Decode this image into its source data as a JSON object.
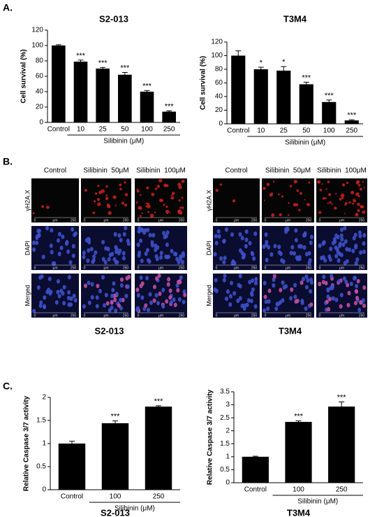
{
  "panel_labels": [
    "A.",
    "B.",
    "C."
  ],
  "chart_data": [
    {
      "type": "bar",
      "title": "S2-013",
      "ylabel": "Cell survival (%)",
      "xlabel": "Silibinin (μM)",
      "categories": [
        "Control",
        "10",
        "25",
        "50",
        "100",
        "250"
      ],
      "values": [
        100,
        79,
        70,
        62,
        40,
        14
      ],
      "errors": [
        1,
        2,
        1.5,
        3,
        1.5,
        1
      ],
      "annotations": [
        null,
        "***",
        "***",
        "***",
        "***",
        "***"
      ],
      "color": "#000000",
      "ylim": [
        0,
        120
      ],
      "yticks": [
        0,
        20,
        40,
        60,
        80,
        100,
        120
      ]
    },
    {
      "type": "bar",
      "title": "T3M4",
      "ylabel": "Cell survival (%)",
      "xlabel": "Silibinin (μM)",
      "categories": [
        "Control",
        "10",
        "25",
        "50",
        "100",
        "250"
      ],
      "values": [
        100,
        80,
        78,
        58,
        32,
        5
      ],
      "errors": [
        7,
        3,
        6,
        3,
        3,
        1
      ],
      "annotations": [
        null,
        "*",
        "*",
        "***",
        "***",
        "***"
      ],
      "color": "#000000",
      "ylim": [
        0,
        120
      ],
      "yticks": [
        0,
        20,
        40,
        60,
        80,
        100,
        120
      ]
    },
    {
      "type": "bar",
      "title": "S2-013",
      "ylabel": "Relative Caspase 3/7 activity",
      "xlabel": "Silibinin (μM)",
      "categories": [
        "Control",
        "100",
        "250"
      ],
      "values": [
        1,
        1.44,
        1.8
      ],
      "errors": [
        0.05,
        0.05,
        0.02
      ],
      "annotations": [
        null,
        "***",
        "***"
      ],
      "color": "#000000",
      "ylim": [
        0,
        2
      ],
      "yticks": [
        0,
        0.5,
        1,
        1.5,
        2
      ]
    },
    {
      "type": "bar",
      "title": "T3M4",
      "ylabel": "Relative Caspase 3/7 activity",
      "xlabel": "Silibinin (μM)",
      "categories": [
        "Control",
        "100",
        "250"
      ],
      "values": [
        1,
        2.34,
        2.93
      ],
      "errors": [
        0.02,
        0.04,
        0.18
      ],
      "annotations": [
        null,
        "***",
        "***"
      ],
      "color": "#000000",
      "ylim": [
        0,
        3.5
      ],
      "yticks": [
        0,
        0.5,
        1,
        1.5,
        2,
        2.5,
        3,
        3.5
      ]
    }
  ],
  "micrographs": [
    {
      "title": "S2-013",
      "columns": [
        "Control",
        "Silibinin  50μM",
        "Silibinin  100μM"
      ],
      "rows": [
        "γH2A.X",
        "DAPI",
        "Merged"
      ],
      "scale_labels": [
        "0",
        "μm",
        "250"
      ]
    },
    {
      "title": "T3M4",
      "columns": [
        "Control",
        "Silibinin  50μM",
        "Silibinin  100μM"
      ],
      "rows": [
        "γH2A.X",
        "DAPI",
        "Merged"
      ],
      "scale_labels": [
        "0",
        "μm",
        "250"
      ]
    }
  ]
}
